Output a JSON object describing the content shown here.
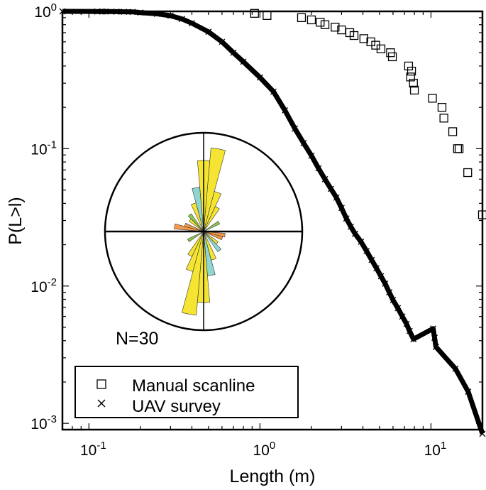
{
  "chart_data": {
    "type": "scatter",
    "xlabel": "Length (m)",
    "ylabel": "P(L>l)",
    "xscale": "log",
    "yscale": "log",
    "xlim": [
      0.07,
      20
    ],
    "ylim": [
      0.0009,
      1
    ],
    "grid": false,
    "legend_placement": "bottom-left",
    "x_ticks": [
      {
        "value": 0.1,
        "mantissa": "10",
        "exp": "-1"
      },
      {
        "value": 1,
        "mantissa": "10",
        "exp": "0"
      },
      {
        "value": 10,
        "mantissa": "10",
        "exp": "1"
      }
    ],
    "y_ticks": [
      {
        "value": 0.001,
        "mantissa": "10",
        "exp": "-3"
      },
      {
        "value": 0.01,
        "mantissa": "10",
        "exp": "-2"
      },
      {
        "value": 0.1,
        "mantissa": "10",
        "exp": "-1"
      },
      {
        "value": 1,
        "mantissa": "10",
        "exp": "0"
      }
    ],
    "series": [
      {
        "name": "Manual scanline",
        "marker": "square",
        "x": [
          0.93,
          1.1,
          1.75,
          2.0,
          2.25,
          2.4,
          2.75,
          3.0,
          3.35,
          3.55,
          4.05,
          4.45,
          4.75,
          5.1,
          5.8,
          5.95,
          7.4,
          7.7,
          7.6,
          7.9,
          8.0,
          10.2,
          11.6,
          11.9,
          13.4,
          14.3,
          14.6,
          16.4,
          20.0
        ],
        "y": [
          0.967,
          0.933,
          0.9,
          0.867,
          0.833,
          0.8,
          0.767,
          0.733,
          0.7,
          0.667,
          0.633,
          0.6,
          0.567,
          0.533,
          0.5,
          0.467,
          0.4,
          0.367,
          0.333,
          0.3,
          0.267,
          0.233,
          0.2,
          0.167,
          0.133,
          0.1,
          0.1,
          0.067,
          0.033
        ]
      },
      {
        "name": "UAV survey",
        "marker": "x",
        "x": [
          0.07,
          0.112,
          0.12,
          0.125,
          0.145,
          0.16,
          0.18,
          0.2,
          0.25,
          0.3,
          0.35,
          0.4,
          0.5,
          0.6,
          0.7,
          0.8,
          1.0,
          1.2,
          1.4,
          1.6,
          1.8,
          2.0,
          2.2,
          2.4,
          2.6,
          2.8,
          3.0,
          3.2,
          3.4,
          3.6,
          3.9,
          4.2,
          4.5,
          4.8,
          5.1,
          5.4,
          5.7,
          6.0,
          6.4,
          6.8,
          7.2,
          7.5,
          7.9,
          10.3,
          10.5,
          10.7,
          13.9,
          16.5,
          20.0
        ],
        "y": [
          1.0,
          0.998,
          0.997,
          0.996,
          0.995,
          0.993,
          0.99,
          0.98,
          0.96,
          0.93,
          0.88,
          0.82,
          0.71,
          0.6,
          0.5,
          0.43,
          0.33,
          0.26,
          0.19,
          0.14,
          0.11,
          0.089,
          0.072,
          0.06,
          0.051,
          0.044,
          0.037,
          0.031,
          0.027,
          0.024,
          0.021,
          0.018,
          0.0155,
          0.0135,
          0.0118,
          0.0104,
          0.009,
          0.0079,
          0.0069,
          0.006,
          0.0053,
          0.0047,
          0.0041,
          0.0049,
          0.0042,
          0.0036,
          0.0025,
          0.0017,
          0.00084
        ]
      }
    ],
    "inset": {
      "type": "rose",
      "label": "N=30",
      "petals": [
        {
          "angle": 10,
          "length": 0.85,
          "color": "#f5e532"
        },
        {
          "angle": 190,
          "length": 0.85,
          "color": "#f5e532"
        },
        {
          "angle": 0,
          "length": 0.72,
          "color": "#f5e532"
        },
        {
          "angle": 180,
          "length": 0.72,
          "color": "#f5e532"
        },
        {
          "angle": 20,
          "length": 0.42,
          "color": "#f5e532"
        },
        {
          "angle": 200,
          "length": 0.42,
          "color": "#f5e532"
        },
        {
          "angle": 30,
          "length": 0.28,
          "color": "#f5e532"
        },
        {
          "angle": 210,
          "length": 0.28,
          "color": "#f5e532"
        },
        {
          "angle": 350,
          "length": 0.45,
          "color": "#8fd6d2"
        },
        {
          "angle": 170,
          "length": 0.45,
          "color": "#8fd6d2"
        },
        {
          "angle": 340,
          "length": 0.3,
          "color": "#f5e532"
        },
        {
          "angle": 160,
          "length": 0.3,
          "color": "#f5e532"
        },
        {
          "angle": 60,
          "length": 0.18,
          "color": "#8cc84b"
        },
        {
          "angle": 240,
          "length": 0.18,
          "color": "#8cc84b"
        },
        {
          "angle": 100,
          "length": 0.22,
          "color": "#f29a4a"
        },
        {
          "angle": 280,
          "length": 0.3,
          "color": "#f29a4a"
        },
        {
          "angle": 110,
          "length": 0.2,
          "color": "#f29a4a"
        },
        {
          "angle": 290,
          "length": 0.2,
          "color": "#f29a4a"
        },
        {
          "angle": 130,
          "length": 0.18,
          "color": "#f5e532"
        },
        {
          "angle": 310,
          "length": 0.18,
          "color": "#f5e532"
        },
        {
          "angle": 140,
          "length": 0.25,
          "color": "#8fd6d2"
        },
        {
          "angle": 320,
          "length": 0.22,
          "color": "#8cc84b"
        }
      ]
    }
  }
}
